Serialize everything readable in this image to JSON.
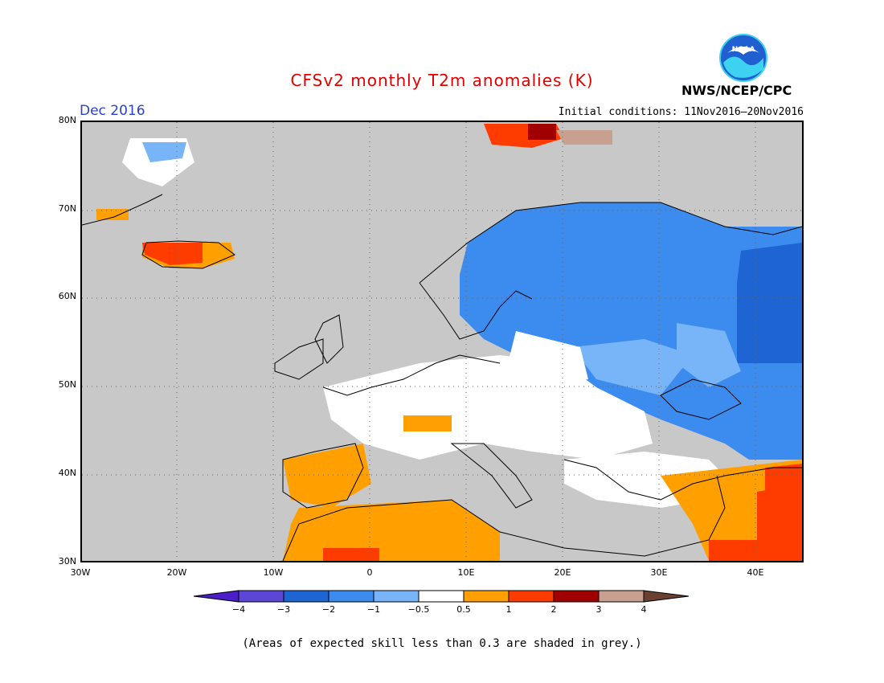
{
  "header": {
    "title": "CFSv2 monthly T2m anomalies (K)",
    "period": "Dec 2016",
    "initial_conditions": "Initial conditions: 11Nov2016–20Nov2016",
    "agency": "NWS/NCEP/CPC",
    "logo_text": "NOAA"
  },
  "map": {
    "lat_labels": [
      "80N",
      "70N",
      "60N",
      "50N",
      "40N",
      "30N"
    ],
    "lon_labels": [
      "30W",
      "20W",
      "10W",
      "0",
      "10E",
      "20E",
      "30E",
      "40E"
    ]
  },
  "colorbar": {
    "labels": [
      "−4",
      "−3",
      "−2",
      "−1",
      "−0.5",
      "0.5",
      "1",
      "2",
      "3",
      "4"
    ],
    "colors": [
      "#4a1ec8",
      "#5b46d6",
      "#1e64d2",
      "#3c8cf0",
      "#78b4f8",
      "#ffffff",
      "#ffa000",
      "#ff3c00",
      "#a00000",
      "#c8a090",
      "#6a4030"
    ]
  },
  "footnote": "(Areas of expected skill less than 0.3 are shaded in grey.)"
}
